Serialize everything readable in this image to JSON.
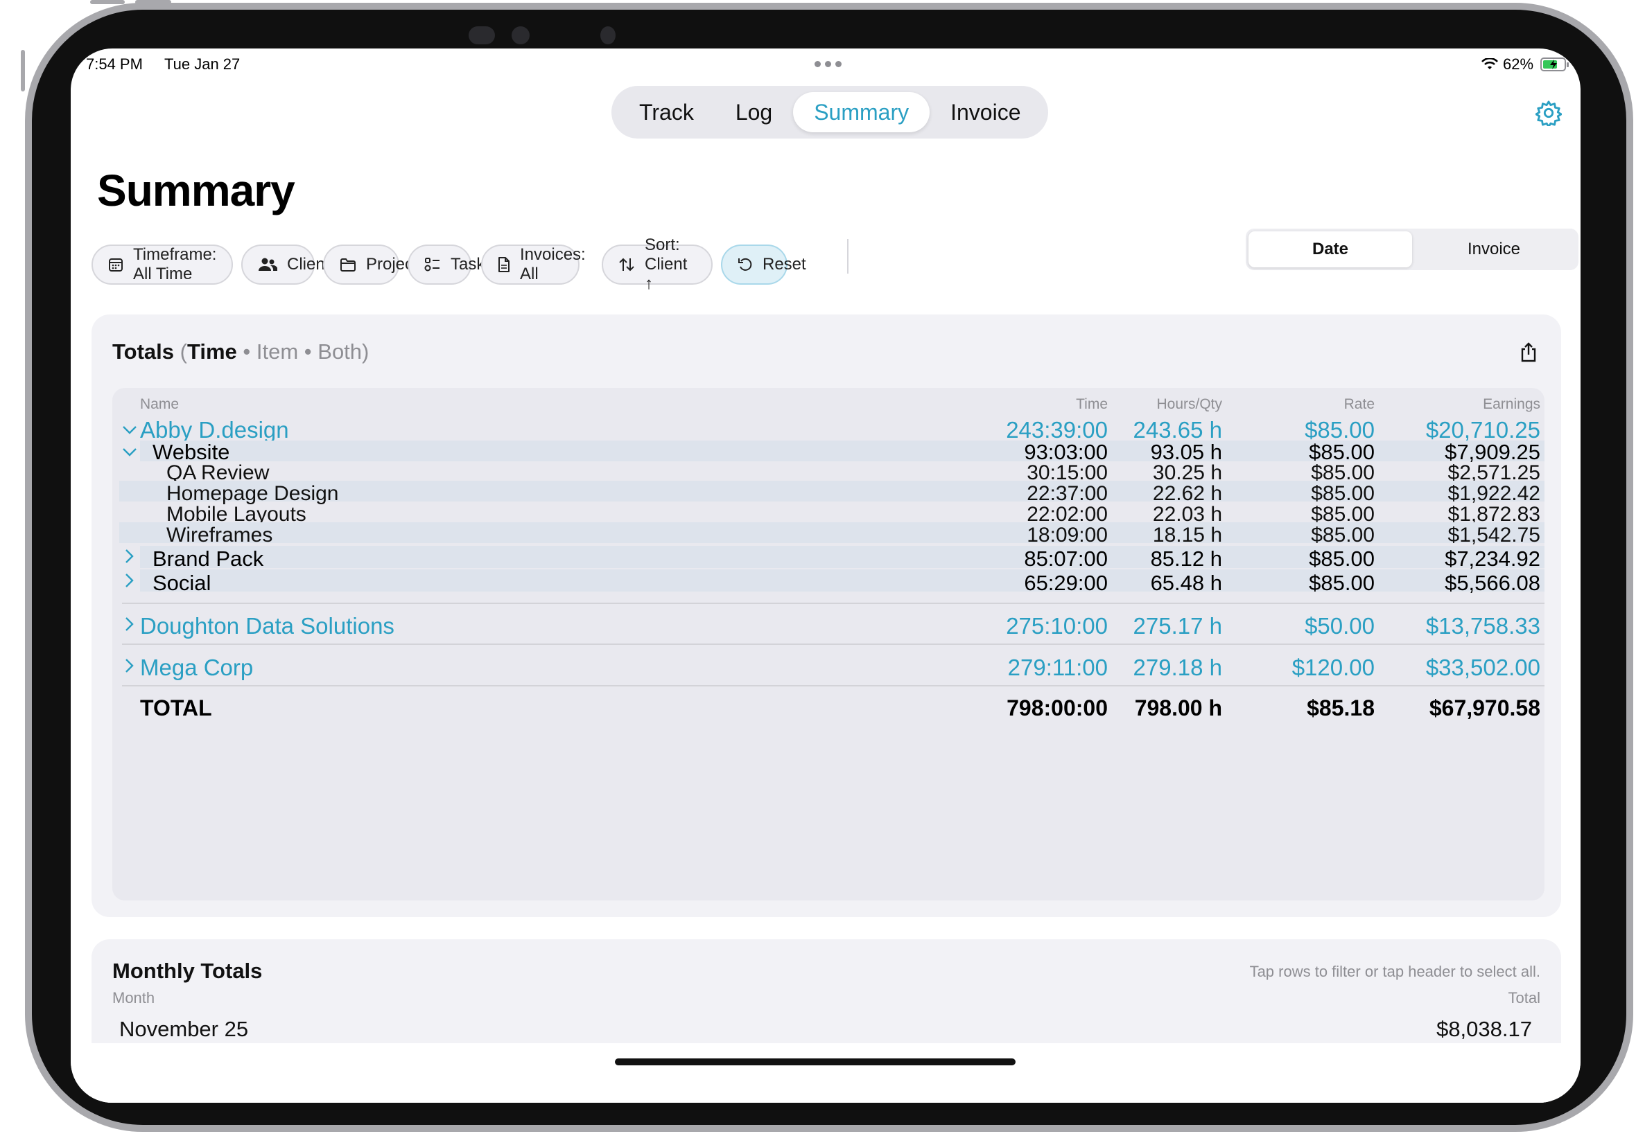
{
  "status_bar": {
    "time": "7:54 PM",
    "date": "Tue Jan 27",
    "battery": "62%"
  },
  "nav_tabs": [
    {
      "label": "Track",
      "active": false
    },
    {
      "label": "Log",
      "active": false
    },
    {
      "label": "Summary",
      "active": true
    },
    {
      "label": "Invoice",
      "active": false
    }
  ],
  "page_title": "Summary",
  "filters": {
    "timeframe": "Timeframe: All Time",
    "client": "Client",
    "project": "Project",
    "task": "Task",
    "invoices": "Invoices: All",
    "sort": "Sort: Client ↑",
    "reset": "Reset"
  },
  "group_toggle": {
    "date": "Date",
    "invoice": "Invoice",
    "selected": "Date"
  },
  "totals": {
    "heading": "Totals",
    "paren_open": "(",
    "mode_time": "Time",
    "mode_item": "Item",
    "mode_both": "Both)",
    "separator": "•",
    "columns": {
      "name": "Name",
      "time": "Time",
      "hours": "Hours/Qty",
      "rate": "Rate",
      "earnings": "Earnings"
    },
    "clients": [
      {
        "name": "Abby D.design",
        "time": "243:39:00",
        "hours": "243.65 h",
        "rate": "$85.00",
        "earnings": "$20,710.25",
        "expanded": true,
        "projects": [
          {
            "name": "Website",
            "time": "93:03:00",
            "hours": "93.05 h",
            "rate": "$85.00",
            "earnings": "$7,909.25",
            "expanded": true,
            "tasks": [
              {
                "name": "QA Review",
                "time": "30:15:00",
                "hours": "30.25 h",
                "rate": "$85.00",
                "earnings": "$2,571.25"
              },
              {
                "name": "Homepage Design",
                "time": "22:37:00",
                "hours": "22.62 h",
                "rate": "$85.00",
                "earnings": "$1,922.42"
              },
              {
                "name": "Mobile Layouts",
                "time": "22:02:00",
                "hours": "22.03 h",
                "rate": "$85.00",
                "earnings": "$1,872.83"
              },
              {
                "name": "Wireframes",
                "time": "18:09:00",
                "hours": "18.15 h",
                "rate": "$85.00",
                "earnings": "$1,542.75"
              }
            ]
          },
          {
            "name": "Brand Pack",
            "time": "85:07:00",
            "hours": "85.12 h",
            "rate": "$85.00",
            "earnings": "$7,234.92",
            "expanded": false
          },
          {
            "name": "Social",
            "time": "65:29:00",
            "hours": "65.48 h",
            "rate": "$85.00",
            "earnings": "$5,566.08",
            "expanded": false
          }
        ]
      },
      {
        "name": "Doughton Data Solutions",
        "time": "275:10:00",
        "hours": "275.17 h",
        "rate": "$50.00",
        "earnings": "$13,758.33",
        "expanded": false
      },
      {
        "name": "Mega Corp",
        "time": "279:11:00",
        "hours": "279.18 h",
        "rate": "$120.00",
        "earnings": "$33,502.00",
        "expanded": false
      }
    ],
    "total": {
      "label": "TOTAL",
      "time": "798:00:00",
      "hours": "798.00 h",
      "rate": "$85.18",
      "earnings": "$67,970.58"
    }
  },
  "monthly": {
    "heading": "Monthly Totals",
    "hint": "Tap rows to filter or tap header to select all.",
    "col_month": "Month",
    "col_total": "Total",
    "rows": [
      {
        "month": "November 25",
        "total": "$8,038.17"
      }
    ]
  }
}
